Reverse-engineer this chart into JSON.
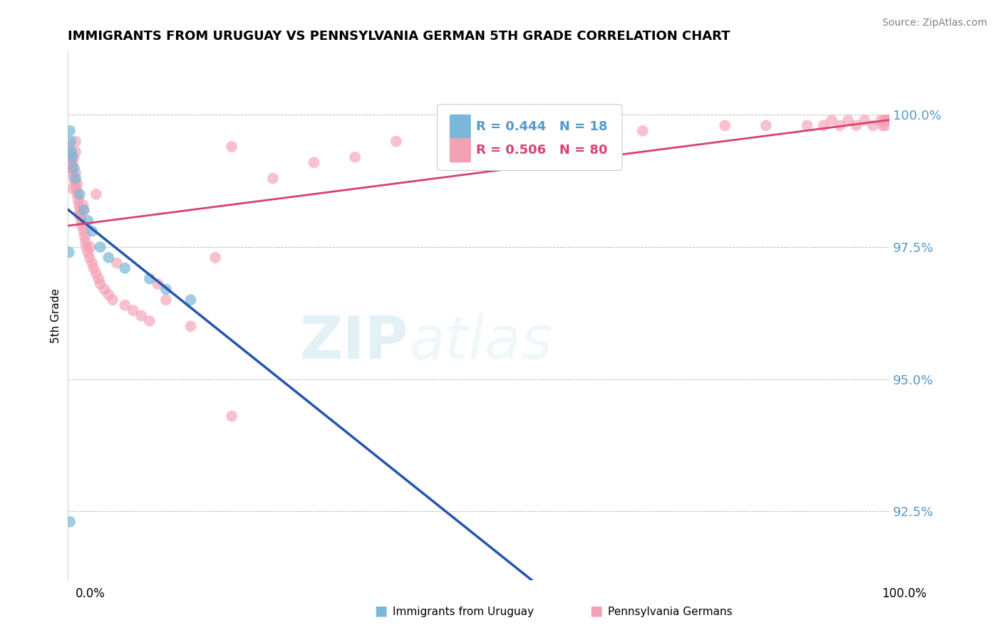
{
  "title": "IMMIGRANTS FROM URUGUAY VS PENNSYLVANIA GERMAN 5TH GRADE CORRELATION CHART",
  "source": "Source: ZipAtlas.com",
  "ylabel": "5th Grade",
  "xmin": 0.0,
  "xmax": 100.0,
  "ymin": 91.2,
  "ymax": 101.2,
  "yticks": [
    92.5,
    95.0,
    97.5,
    100.0
  ],
  "ytick_labels": [
    "92.5%",
    "95.0%",
    "97.5%",
    "100.0%"
  ],
  "blue_label": "Immigrants from Uruguay",
  "pink_label": "Pennsylvania Germans",
  "blue_R": 0.444,
  "blue_N": 18,
  "pink_R": 0.506,
  "pink_N": 80,
  "blue_color": "#7ab8d9",
  "pink_color": "#f4a0b5",
  "trend_blue": "#2255aa",
  "trend_pink": "#d94070",
  "axis_label_color": "#5599cc",
  "blue_scatter_x": [
    0.3,
    0.4,
    0.5,
    0.6,
    0.8,
    1.0,
    1.5,
    2.0,
    2.5,
    3.0,
    4.0,
    5.0,
    7.0,
    10.0,
    12.0,
    15.0,
    0.2,
    0.3
  ],
  "blue_scatter_y": [
    99.7,
    99.5,
    99.3,
    99.2,
    99.0,
    98.8,
    98.5,
    98.2,
    98.0,
    97.8,
    97.5,
    97.3,
    97.1,
    96.9,
    96.7,
    96.5,
    97.4,
    92.3
  ],
  "pink_scatter_x": [
    0.2,
    0.3,
    0.4,
    0.5,
    0.6,
    0.7,
    0.8,
    0.9,
    1.0,
    1.1,
    1.2,
    1.3,
    1.4,
    1.5,
    1.6,
    1.7,
    1.8,
    1.9,
    2.0,
    2.1,
    2.2,
    2.3,
    2.5,
    2.7,
    3.0,
    3.2,
    3.5,
    3.8,
    4.0,
    4.5,
    5.0,
    5.5,
    6.0,
    7.0,
    8.0,
    9.0,
    10.0,
    11.0,
    12.0,
    15.0,
    18.0,
    20.0,
    25.0,
    30.0,
    35.0,
    40.0,
    50.0,
    60.0,
    70.0,
    80.0,
    85.0,
    90.0,
    92.0,
    93.0,
    94.0,
    95.0,
    96.0,
    97.0,
    98.0,
    99.0,
    99.2,
    99.4,
    99.5,
    99.6,
    99.7,
    99.8,
    3.5,
    0.5,
    1.0,
    1.2,
    0.8,
    1.5,
    2.0,
    2.8,
    1.0,
    0.6,
    0.4,
    0.3,
    20.0,
    0.7
  ],
  "pink_scatter_y": [
    99.4,
    99.3,
    99.2,
    99.1,
    99.0,
    98.9,
    98.8,
    98.7,
    99.5,
    98.6,
    98.5,
    98.4,
    98.3,
    98.2,
    98.1,
    98.0,
    97.9,
    98.3,
    97.8,
    97.7,
    97.6,
    97.5,
    97.4,
    97.3,
    97.2,
    97.1,
    97.0,
    96.9,
    96.8,
    96.7,
    96.6,
    96.5,
    97.2,
    96.4,
    96.3,
    96.2,
    96.1,
    96.8,
    96.5,
    96.0,
    97.3,
    99.4,
    98.8,
    99.1,
    99.2,
    99.5,
    99.6,
    99.7,
    99.7,
    99.8,
    99.8,
    99.8,
    99.8,
    99.9,
    99.8,
    99.9,
    99.8,
    99.9,
    99.8,
    99.9,
    99.8,
    99.9,
    99.8,
    99.9,
    99.9,
    99.9,
    98.5,
    99.0,
    98.9,
    98.7,
    99.2,
    98.1,
    98.2,
    97.5,
    99.3,
    99.1,
    99.0,
    99.2,
    94.3,
    98.6
  ]
}
